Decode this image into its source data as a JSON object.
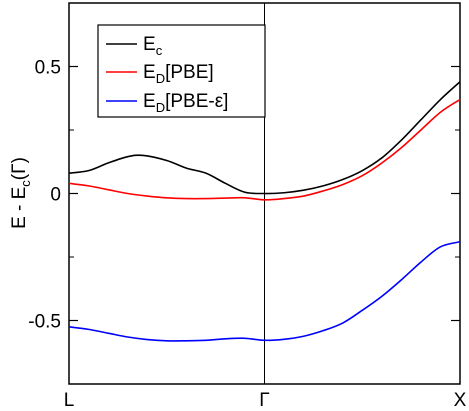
{
  "chart_data": {
    "type": "line",
    "title": "",
    "xlabel": "",
    "ylabel": "E - E_c(Γ)",
    "ylabel_parts": {
      "main": "E - E",
      "sub": "c",
      "tail": "(Γ)"
    },
    "xlim": [
      0,
      1
    ],
    "ylim": [
      -0.75,
      0.75
    ],
    "x_ticks": [
      {
        "value": 0,
        "label": "L"
      },
      {
        "value": 0.5,
        "label": "Γ"
      },
      {
        "value": 1,
        "label": "X"
      }
    ],
    "y_ticks": [
      {
        "value": 0.5,
        "label": "0.5"
      },
      {
        "value": 0,
        "label": "0"
      },
      {
        "value": -0.5,
        "label": "-0.5"
      }
    ],
    "vertical_line_at": 0.5,
    "grid": false,
    "legend_position": "top-left",
    "series": [
      {
        "name": "E_c",
        "legend_parts": {
          "main": "E",
          "sub": "c",
          "tail": ""
        },
        "color": "#000000",
        "x": [
          0,
          0.05,
          0.1,
          0.15,
          0.19,
          0.25,
          0.3,
          0.35,
          0.4,
          0.45,
          0.5,
          0.55,
          0.6,
          0.65,
          0.7,
          0.75,
          0.8,
          0.85,
          0.9,
          0.95,
          1.0
        ],
        "y": [
          0.08,
          0.09,
          0.12,
          0.145,
          0.15,
          0.13,
          0.1,
          0.08,
          0.04,
          0.005,
          0.0,
          0.003,
          0.013,
          0.03,
          0.055,
          0.09,
          0.14,
          0.21,
          0.29,
          0.37,
          0.44
        ]
      },
      {
        "name": "E_D[PBE]",
        "legend_parts": {
          "main": "E",
          "sub": "D",
          "tail": "[PBE]"
        },
        "color": "#ff0000",
        "x": [
          0,
          0.05,
          0.1,
          0.15,
          0.2,
          0.25,
          0.3,
          0.35,
          0.4,
          0.45,
          0.5,
          0.55,
          0.6,
          0.65,
          0.7,
          0.75,
          0.8,
          0.85,
          0.9,
          0.95,
          1.0
        ],
        "y": [
          0.04,
          0.03,
          0.015,
          0.0,
          -0.01,
          -0.017,
          -0.02,
          -0.02,
          -0.018,
          -0.017,
          -0.025,
          -0.02,
          -0.01,
          0.01,
          0.035,
          0.07,
          0.12,
          0.18,
          0.25,
          0.32,
          0.37
        ]
      },
      {
        "name": "E_D[PBE-ε]",
        "legend_parts": {
          "main": "E",
          "sub": "D",
          "tail": "[PBE-ε]"
        },
        "color": "#0000ff",
        "x": [
          0,
          0.05,
          0.1,
          0.15,
          0.2,
          0.25,
          0.3,
          0.35,
          0.4,
          0.45,
          0.5,
          0.55,
          0.6,
          0.65,
          0.7,
          0.75,
          0.8,
          0.85,
          0.9,
          0.95,
          1.0
        ],
        "y": [
          -0.525,
          -0.535,
          -0.55,
          -0.565,
          -0.575,
          -0.58,
          -0.58,
          -0.578,
          -0.572,
          -0.57,
          -0.578,
          -0.574,
          -0.562,
          -0.54,
          -0.51,
          -0.46,
          -0.405,
          -0.34,
          -0.27,
          -0.21,
          -0.19
        ]
      }
    ]
  }
}
